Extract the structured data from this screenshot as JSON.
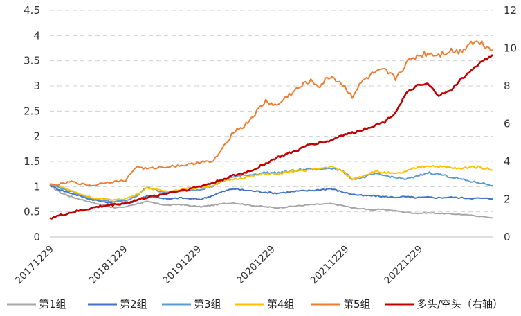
{
  "chart_data": {
    "type": "line",
    "x_ticks": [
      "20171229",
      "20181229",
      "20191229",
      "20201229",
      "20211229",
      "20221229"
    ],
    "y_left": {
      "min": 0,
      "max": 4.5,
      "ticks": [
        "0",
        "0.5",
        "1",
        "1.5",
        "2",
        "2.5",
        "3",
        "3.5",
        "4",
        "4.5"
      ]
    },
    "y_right": {
      "min": 0,
      "max": 12,
      "ticks": [
        "0",
        "2",
        "4",
        "6",
        "8",
        "10",
        "12"
      ]
    },
    "grid": "horizontal-dashed",
    "legend_position": "bottom",
    "series": [
      {
        "name": "第1组",
        "color": "#a6a6a6",
        "axis": "left",
        "values": [
          1.02,
          0.88,
          0.8,
          0.74,
          0.68,
          0.63,
          0.58,
          0.6,
          0.66,
          0.7,
          0.66,
          0.63,
          0.65,
          0.62,
          0.6,
          0.63,
          0.66,
          0.68,
          0.65,
          0.62,
          0.6,
          0.58,
          0.6,
          0.62,
          0.64,
          0.65,
          0.66,
          0.63,
          0.58,
          0.56,
          0.54,
          0.55,
          0.52,
          0.49,
          0.47,
          0.48,
          0.47,
          0.46,
          0.45,
          0.43,
          0.41,
          0.38
        ]
      },
      {
        "name": "第2组",
        "color": "#4472c4",
        "axis": "left",
        "values": [
          1.03,
          0.93,
          0.87,
          0.8,
          0.74,
          0.7,
          0.66,
          0.65,
          0.72,
          0.82,
          0.79,
          0.75,
          0.78,
          0.76,
          0.75,
          0.82,
          0.9,
          0.96,
          0.93,
          0.91,
          0.89,
          0.87,
          0.89,
          0.91,
          0.92,
          0.94,
          0.96,
          0.9,
          0.85,
          0.82,
          0.82,
          0.8,
          0.79,
          0.8,
          0.78,
          0.79,
          0.78,
          0.79,
          0.78,
          0.77,
          0.77,
          0.76
        ]
      },
      {
        "name": "第3组",
        "color": "#5b9bd5",
        "axis": "left",
        "values": [
          1.05,
          0.97,
          0.9,
          0.82,
          0.76,
          0.72,
          0.7,
          0.72,
          0.8,
          1.0,
          0.92,
          0.88,
          0.9,
          0.93,
          0.95,
          1.0,
          1.12,
          1.2,
          1.22,
          1.25,
          1.28,
          1.27,
          1.3,
          1.33,
          1.35,
          1.34,
          1.38,
          1.32,
          1.15,
          1.18,
          1.25,
          1.22,
          1.18,
          1.15,
          1.2,
          1.28,
          1.25,
          1.2,
          1.15,
          1.1,
          1.07,
          1.02
        ]
      },
      {
        "name": "第4组",
        "color": "#ffc000",
        "axis": "left",
        "values": [
          1.06,
          1.0,
          0.92,
          0.84,
          0.78,
          0.75,
          0.74,
          0.76,
          0.84,
          0.98,
          0.93,
          0.91,
          0.94,
          0.97,
          0.98,
          1.02,
          1.1,
          1.15,
          1.18,
          1.22,
          1.26,
          1.25,
          1.28,
          1.32,
          1.33,
          1.36,
          1.4,
          1.32,
          1.15,
          1.22,
          1.3,
          1.28,
          1.25,
          1.3,
          1.38,
          1.42,
          1.4,
          1.38,
          1.35,
          1.4,
          1.38,
          1.33
        ]
      },
      {
        "name": "第5组",
        "color": "#ed7d31",
        "axis": "left",
        "values": [
          1.02,
          1.05,
          1.1,
          1.05,
          1.02,
          1.08,
          1.1,
          1.12,
          1.4,
          1.35,
          1.38,
          1.4,
          1.42,
          1.44,
          1.5,
          1.48,
          1.75,
          2.1,
          2.2,
          2.45,
          2.7,
          2.6,
          2.8,
          2.95,
          3.1,
          3.0,
          3.2,
          3.05,
          2.8,
          3.1,
          3.25,
          3.3,
          3.15,
          3.45,
          3.6,
          3.65,
          3.62,
          3.7,
          3.68,
          3.88,
          3.85,
          3.72
        ]
      },
      {
        "name": "多头/空头（右轴）",
        "color": "#c00000",
        "axis": "right",
        "values": [
          1.0,
          1.15,
          1.3,
          1.42,
          1.55,
          1.65,
          1.72,
          1.8,
          1.95,
          2.1,
          2.2,
          2.35,
          2.45,
          2.55,
          2.7,
          2.85,
          3.05,
          3.25,
          3.4,
          3.6,
          3.9,
          4.2,
          4.4,
          4.6,
          4.9,
          5.0,
          5.1,
          5.4,
          5.5,
          5.7,
          5.9,
          6.1,
          6.6,
          7.6,
          8.0,
          8.1,
          7.5,
          7.7,
          8.3,
          8.8,
          9.3,
          9.65
        ]
      }
    ]
  }
}
